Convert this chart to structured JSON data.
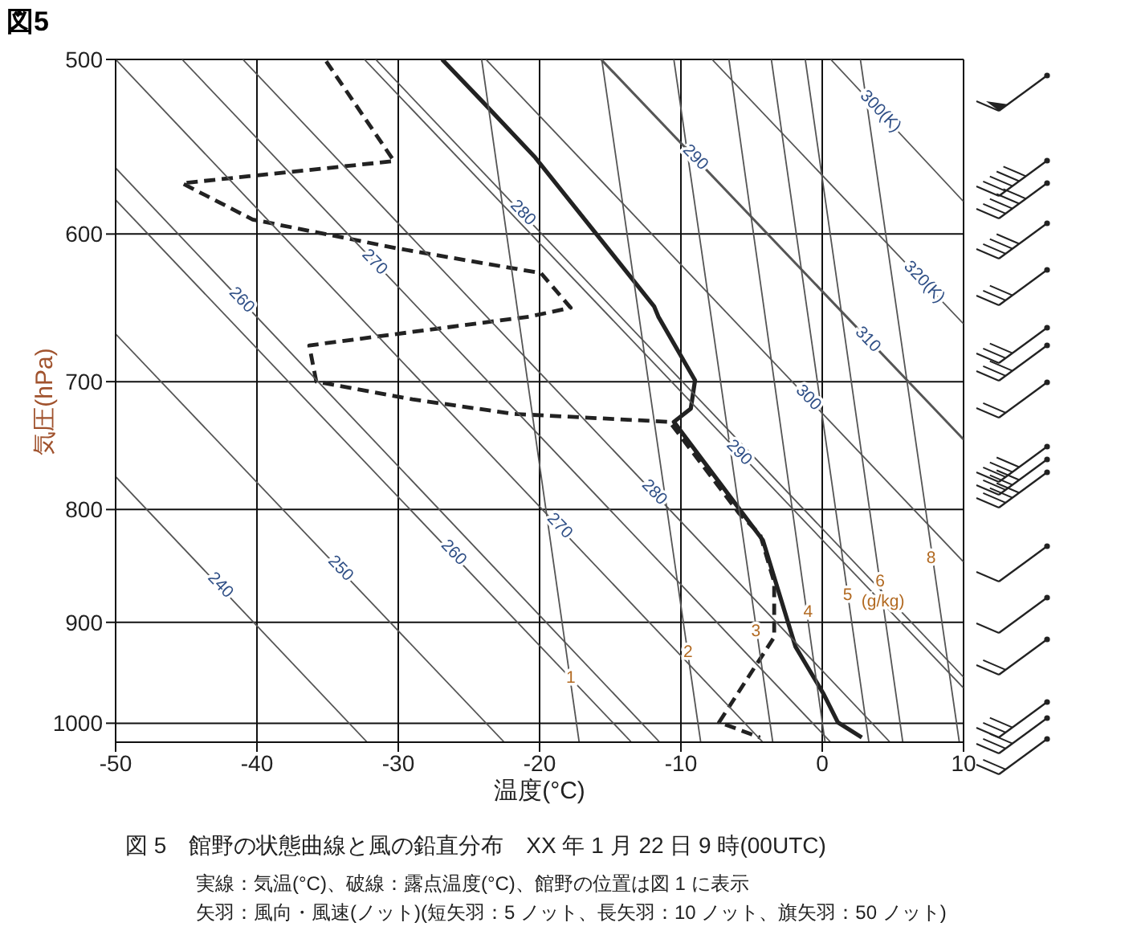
{
  "chart_data": {
    "type": "line",
    "title": "図5",
    "xlabel": "温度(°C)",
    "ylabel": "気圧(hPa)",
    "xlim": [
      -50,
      10
    ],
    "xticks": [
      -50,
      -40,
      -30,
      -20,
      -10,
      0,
      10
    ],
    "ylim": [
      1020,
      500
    ],
    "yticks": [
      500,
      600,
      700,
      800,
      900,
      1000
    ],
    "log": "y",
    "grid": true,
    "marker": "none",
    "series": [
      {
        "color": "#222222",
        "line_style": "solid",
        "x": [
          -26.9,
          -24.1,
          -20.3,
          -11.9,
          -11.6,
          -9.0,
          -9.3,
          -10.5,
          -5.9,
          -4.2,
          -1.9,
          0.1,
          1.1,
          2.8
        ],
        "values": [
          500,
          522,
          554,
          647,
          654,
          699,
          720,
          730,
          799,
          826,
          923,
          970,
          999,
          1015
        ]
      },
      {
        "color": "#222222",
        "line_style": "dashed",
        "x": [
          -35.1,
          -30.3,
          -45.3,
          -40.3,
          -30.1,
          -19.9,
          -17.8,
          -20.7,
          -36.3,
          -35.8,
          -29.0,
          -21.8,
          -10.8,
          -5.9,
          -4.4,
          -3.4,
          -3.4,
          -7.3,
          -4.4
        ],
        "values": [
          501,
          556,
          569,
          591,
          609,
          625,
          648,
          654,
          674,
          700,
          713,
          724,
          730,
          803,
          821,
          863,
          914,
          999,
          1015
        ]
      },
      {
        "color": "#555555",
        "line_style": "solid",
        "x": [
          -50,
          -11.5
        ],
        "values": [
          560,
          1020
        ]
      },
      {
        "color": "#555555",
        "line_style": "solid",
        "x": [
          -45.3,
          0.6
        ],
        "values": [
          500,
          1020
        ]
      },
      {
        "color": "#555555",
        "line_style": "solid",
        "x": [
          -31.6,
          10
        ],
        "values": [
          500,
          953
        ]
      },
      {
        "color": "#555555",
        "line_style": "solid",
        "x": [
          -15.6,
          10
        ],
        "values": [
          500,
          743
        ]
      },
      {
        "color": "#555555",
        "line_style": "solid",
        "x": [
          0.6,
          10
        ],
        "values": [
          500,
          580
        ]
      },
      {
        "color": "#555555",
        "line_style": "solid",
        "x": [
          -50,
          -32.2
        ],
        "values": [
          773,
          1020
        ]
      },
      {
        "color": "#555555",
        "line_style": "solid",
        "x": [
          -50,
          -22.5
        ],
        "values": [
          666,
          1020
        ]
      },
      {
        "color": "#555555",
        "line_style": "solid",
        "x": [
          -50,
          -13.5
        ],
        "values": [
          579,
          1020
        ]
      },
      {
        "color": "#555555",
        "line_style": "solid",
        "x": [
          -50,
          -4.2
        ],
        "values": [
          500,
          1020
        ]
      },
      {
        "color": "#555555",
        "line_style": "solid",
        "x": [
          -41.0,
          4.8
        ],
        "values": [
          500,
          1020
        ]
      },
      {
        "color": "#555555",
        "line_style": "solid",
        "x": [
          -32.4,
          10
        ],
        "values": [
          500,
          964
        ]
      },
      {
        "color": "#555555",
        "line_style": "solid",
        "x": [
          -23.8,
          10
        ],
        "values": [
          500,
          845
        ]
      },
      {
        "color": "#555555",
        "line_style": "solid",
        "x": [
          -15.7,
          10
        ],
        "values": [
          500,
          744
        ]
      },
      {
        "color": "#555555",
        "line_style": "solid",
        "x": [
          -7.8,
          10
        ],
        "values": [
          500,
          659
        ]
      },
      {
        "color": "#555555",
        "line_style": "solid",
        "x": [
          -24.1,
          -17.2
        ],
        "values": [
          500,
          1020
        ]
      },
      {
        "color": "#555555",
        "line_style": "solid",
        "x": [
          -15.6,
          -8.6
        ],
        "values": [
          500,
          1020
        ]
      },
      {
        "color": "#555555",
        "line_style": "solid",
        "x": [
          -10.5,
          -3.5
        ],
        "values": [
          500,
          1020
        ]
      },
      {
        "color": "#555555",
        "line_style": "solid",
        "x": [
          -6.6,
          0.2
        ],
        "values": [
          500,
          1020
        ]
      },
      {
        "color": "#555555",
        "line_style": "solid",
        "x": [
          -3.6,
          3.3
        ],
        "values": [
          500,
          1020
        ]
      },
      {
        "color": "#555555",
        "line_style": "solid",
        "x": [
          -1.2,
          5.7
        ],
        "values": [
          500,
          1020
        ]
      },
      {
        "color": "#555555",
        "line_style": "solid",
        "x": [
          2.7,
          9.7
        ],
        "values": [
          500,
          1020
        ]
      }
    ],
    "annotations": [
      {
        "text": "260",
        "x": -41.1,
        "y": 643
      },
      {
        "text": "270",
        "x": -31.7,
        "y": 618
      },
      {
        "text": "280",
        "x": -21.2,
        "y": 587
      },
      {
        "text": "290",
        "x": -9.0,
        "y": 554
      },
      {
        "text": "300(K)",
        "x": 4.1,
        "y": 528
      },
      {
        "text": "240",
        "x": -42.6,
        "y": 866
      },
      {
        "text": "250",
        "x": -34.1,
        "y": 851
      },
      {
        "text": "260",
        "x": -26.1,
        "y": 837
      },
      {
        "text": "270",
        "x": -18.6,
        "y": 814
      },
      {
        "text": "280",
        "x": -11.9,
        "y": 786
      },
      {
        "text": "290",
        "x": -5.9,
        "y": 754
      },
      {
        "text": "300",
        "x": -1.0,
        "y": 712
      },
      {
        "text": "310",
        "x": 3.2,
        "y": 670
      },
      {
        "text": "320(K)",
        "x": 7.2,
        "y": 631
      },
      {
        "text": "1",
        "x": -17.8,
        "y": 954
      },
      {
        "text": "2",
        "x": -9.5,
        "y": 929
      },
      {
        "text": "3",
        "x": -4.7,
        "y": 909
      },
      {
        "text": "4",
        "x": -1.0,
        "y": 891
      },
      {
        "text": "5",
        "x": 1.8,
        "y": 875
      },
      {
        "text": "6",
        "x": 4.1,
        "y": 863
      },
      {
        "text": "(g/kg)",
        "x": 4.3,
        "y": 881
      },
      {
        "text": "8",
        "x": 7.7,
        "y": 842
      },
      "図 5　館野の状態曲線と風の鉛直分布　XX 年 1 月 22 日 9 時(00UTC)",
      "実線：気温(°C)、破線：露点温度(°C)、館野の位置は図 1 に表示",
      "矢羽：風向・風速(ノット)(短矢羽：5 ノット、長矢羽：10 ノット、旗矢羽：50 ノット)"
    ]
  }
}
